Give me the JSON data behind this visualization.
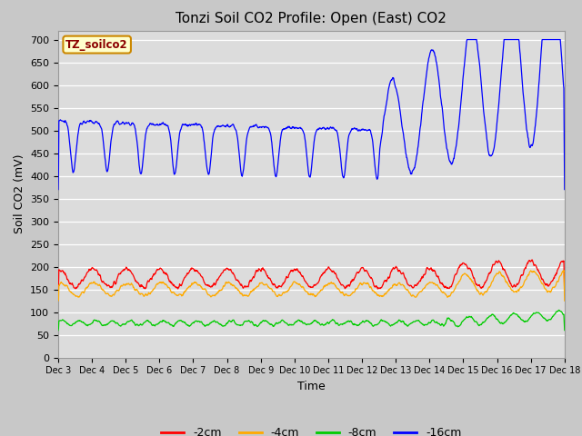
{
  "title": "Tonzi Soil CO2 Profile: Open (East) CO2",
  "xlabel": "Time",
  "ylabel": "Soil CO2 (mV)",
  "ylim": [
    0,
    720
  ],
  "yticks": [
    0,
    50,
    100,
    150,
    200,
    250,
    300,
    350,
    400,
    450,
    500,
    550,
    600,
    650,
    700
  ],
  "x_tick_labels": [
    "Dec 3",
    "Dec 4",
    "Dec 5",
    "Dec 6",
    "Dec 7",
    "Dec 8",
    "Dec 9",
    "Dec 10",
    "Dec 11",
    "Dec 12",
    "Dec 13",
    "Dec 14",
    "Dec 15",
    "Dec 16",
    "Dec 17",
    "Dec 18"
  ],
  "legend_label": "TZ_soilco2",
  "line_colors": {
    "cm2": "#ff0000",
    "cm4": "#ffaa00",
    "cm8": "#00cc00",
    "cm16": "#0000ff"
  },
  "legend_entries": [
    "-2cm",
    "-4cm",
    "-8cm",
    "-16cm"
  ],
  "fig_bg": "#c8c8c8",
  "plot_bg": "#dcdcdc",
  "grid_color": "#ffffff",
  "title_fontsize": 11,
  "axis_fontsize": 9,
  "tick_fontsize": 8
}
